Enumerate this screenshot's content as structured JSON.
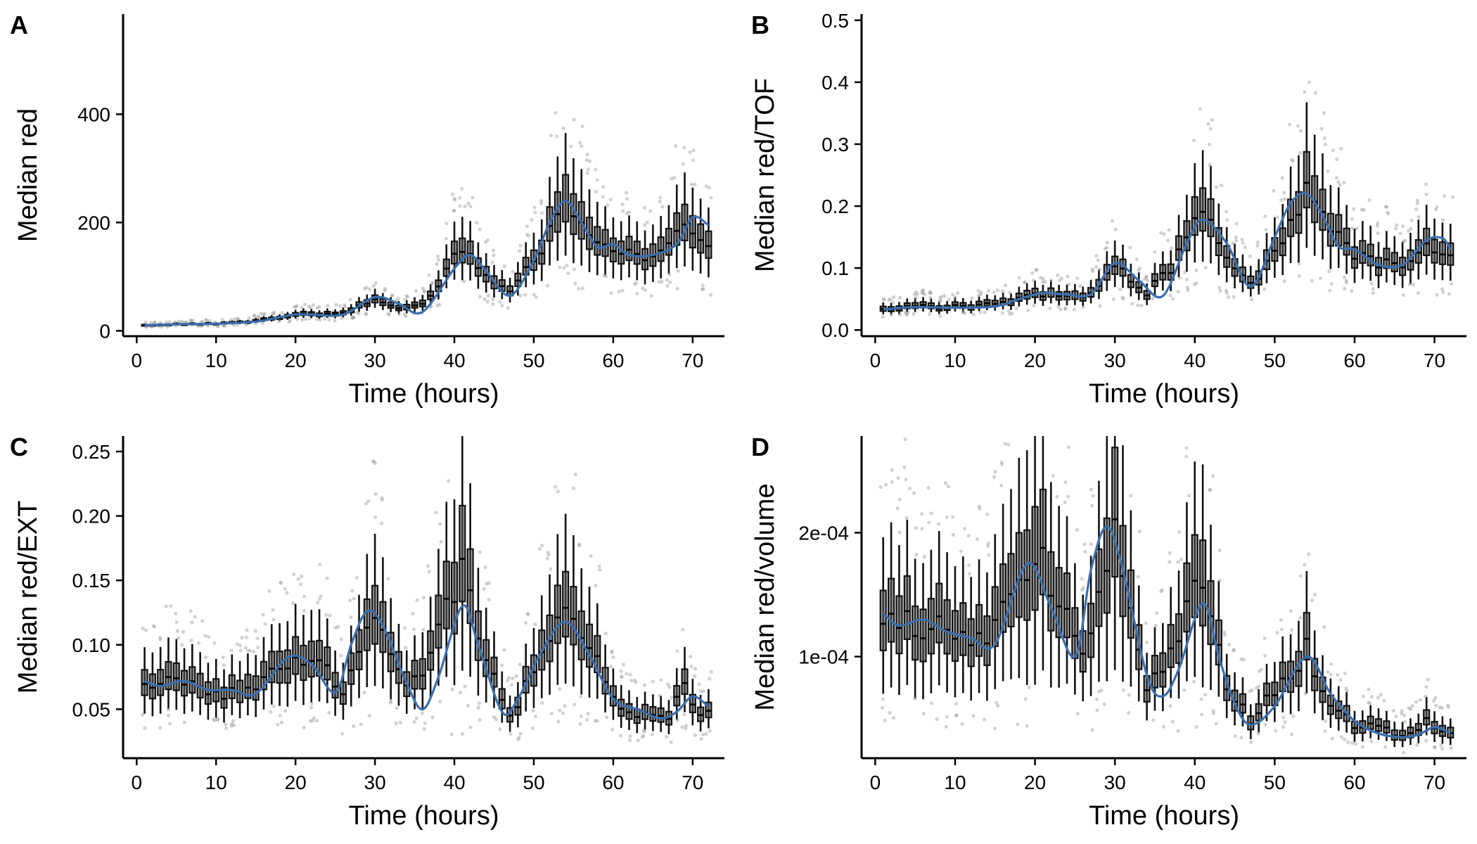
{
  "colors": {
    "smooth_line": "#3a6fb0",
    "box": "#5a5a5a",
    "outlier": "#9a9a9a",
    "axis": "#000000"
  },
  "chart_data": [
    {
      "panel": "A",
      "type": "boxplot",
      "xlabel": "Time (hours)",
      "ylabel": "Median red",
      "xlim": [
        -1,
        74
      ],
      "ylim": [
        -10,
        585
      ],
      "xticks": [
        0,
        10,
        20,
        30,
        40,
        50,
        60,
        70
      ],
      "yticks": [
        0,
        200,
        400
      ],
      "ytick_labels": [
        "0",
        "200",
        "400"
      ],
      "x": [
        1,
        5,
        9,
        13,
        17,
        20,
        23,
        26,
        30,
        34,
        37,
        41,
        44,
        47,
        50,
        54,
        57,
        60,
        64,
        67,
        69,
        71
      ],
      "median": [
        10,
        12,
        13,
        15,
        22,
        30,
        30,
        33,
        62,
        40,
        60,
        160,
        110,
        70,
        130,
        230,
        190,
        140,
        140,
        150,
        200,
        170
      ],
      "smooth_x": [
        1,
        5,
        10,
        15,
        18,
        20,
        22,
        26,
        30,
        33,
        36,
        40,
        42,
        44,
        47,
        50,
        52,
        54,
        56,
        58,
        60,
        62,
        65,
        68,
        70,
        72
      ],
      "smooth": [
        10,
        12,
        13,
        17,
        25,
        30,
        30,
        30,
        62,
        50,
        35,
        115,
        140,
        110,
        65,
        130,
        200,
        240,
        200,
        155,
        160,
        140,
        140,
        160,
        210,
        195
      ]
    },
    {
      "panel": "B",
      "type": "boxplot",
      "xlabel": "Time (hours)",
      "ylabel": "Median red/TOF",
      "xlim": [
        -1,
        74
      ],
      "ylim": [
        -0.01,
        0.51
      ],
      "xticks": [
        0,
        10,
        20,
        30,
        40,
        50,
        60,
        70
      ],
      "yticks": [
        0,
        0.1,
        0.2,
        0.3,
        0.4,
        0.5
      ],
      "ytick_labels": [
        "0.0",
        "0.1",
        "0.2",
        "0.3",
        "0.4",
        "0.5"
      ],
      "x": [
        1,
        5,
        9,
        13,
        17,
        20,
        23,
        26,
        30,
        34,
        37,
        41,
        44,
        47,
        50,
        54,
        57,
        60,
        64,
        67,
        69,
        71
      ],
      "median": [
        0.035,
        0.04,
        0.037,
        0.038,
        0.048,
        0.06,
        0.057,
        0.05,
        0.105,
        0.06,
        0.1,
        0.2,
        0.12,
        0.07,
        0.12,
        0.22,
        0.16,
        0.12,
        0.105,
        0.11,
        0.14,
        0.12
      ],
      "smooth_x": [
        1,
        5,
        10,
        15,
        18,
        21,
        24,
        27,
        30,
        33,
        36,
        39,
        41,
        44,
        47,
        50,
        52,
        54,
        56,
        58,
        60,
        63,
        66,
        69,
        71,
        72
      ],
      "smooth": [
        0.033,
        0.037,
        0.036,
        0.038,
        0.05,
        0.06,
        0.057,
        0.058,
        0.108,
        0.08,
        0.055,
        0.14,
        0.178,
        0.14,
        0.07,
        0.15,
        0.205,
        0.22,
        0.185,
        0.135,
        0.13,
        0.105,
        0.105,
        0.145,
        0.148,
        0.13
      ]
    },
    {
      "panel": "C",
      "type": "boxplot",
      "xlabel": "Time (hours)",
      "ylabel": "Median red/EXT",
      "xlim": [
        -1,
        74
      ],
      "ylim": [
        0.012,
        0.262
      ],
      "xticks": [
        0,
        10,
        20,
        30,
        40,
        50,
        60,
        70
      ],
      "yticks": [
        0.05,
        0.1,
        0.15,
        0.2,
        0.25
      ],
      "ytick_labels": [
        "0.05",
        "0.10",
        "0.15",
        "0.20",
        "0.25"
      ],
      "x": [
        1,
        5,
        9,
        13,
        17,
        20,
        23,
        26,
        30,
        34,
        37,
        41,
        44,
        47,
        50,
        54,
        57,
        60,
        64,
        67,
        69,
        71
      ],
      "median": [
        0.07,
        0.07,
        0.065,
        0.062,
        0.075,
        0.09,
        0.085,
        0.065,
        0.12,
        0.065,
        0.09,
        0.16,
        0.09,
        0.045,
        0.08,
        0.13,
        0.1,
        0.055,
        0.045,
        0.045,
        0.065,
        0.045
      ],
      "smooth_x": [
        1,
        3,
        6,
        9,
        12,
        15,
        19,
        22,
        25,
        27,
        29,
        31,
        34,
        36,
        38,
        41,
        43,
        46,
        48,
        51,
        54,
        57,
        60,
        63,
        66,
        68,
        70,
        72
      ],
      "smooth": [
        0.072,
        0.068,
        0.072,
        0.065,
        0.065,
        0.062,
        0.09,
        0.085,
        0.063,
        0.1,
        0.126,
        0.115,
        0.07,
        0.05,
        0.075,
        0.13,
        0.1,
        0.048,
        0.058,
        0.095,
        0.118,
        0.092,
        0.058,
        0.05,
        0.043,
        0.048,
        0.06,
        0.052
      ]
    },
    {
      "panel": "D",
      "type": "boxplot",
      "xlabel": "Time (hours)",
      "ylabel": "Median red/volume",
      "xlim": [
        -1,
        74
      ],
      "ylim": [
        1.8e-05,
        0.000278
      ],
      "xticks": [
        0,
        10,
        20,
        30,
        40,
        50,
        60,
        70
      ],
      "yticks": [
        0.0001,
        0.0002
      ],
      "ytick_labels": [
        "1e-04",
        "2e-04"
      ],
      "x": [
        1,
        5,
        9,
        13,
        17,
        20,
        23,
        26,
        30,
        34,
        37,
        41,
        44,
        47,
        50,
        54,
        57,
        60,
        64,
        67,
        69,
        71
      ],
      "median": [
        0.000135,
        0.000128,
        0.00012,
        0.000115,
        0.00014,
        0.00019,
        0.000145,
        0.0001,
        0.0002,
        8e-05,
        0.0001,
        0.00017,
        7e-05,
        5e-05,
        7e-05,
        0.000105,
        6e-05,
        4.5e-05,
        4e-05,
        3.8e-05,
        5e-05,
        3.8e-05
      ],
      "smooth_x": [
        1,
        3,
        6,
        9,
        12,
        15,
        19,
        22,
        25,
        27,
        29,
        31,
        34,
        36,
        38,
        41,
        43,
        45,
        47,
        50,
        54,
        57,
        60,
        63,
        66,
        68,
        70,
        72
      ],
      "smooth": [
        0.000135,
        0.000125,
        0.00013,
        0.00012,
        0.000115,
        0.00011,
        0.000175,
        0.00014,
        0.0001,
        0.00017,
        0.000205,
        0.00017,
        8.5e-05,
        6.8e-05,
        9e-05,
        0.000143,
        0.0001,
        6.2e-05,
        4.5e-05,
        6e-05,
        0.0001,
        7e-05,
        4.8e-05,
        3.8e-05,
        3.5e-05,
        3.7e-05,
        4.3e-05,
        3.8e-05
      ]
    }
  ]
}
